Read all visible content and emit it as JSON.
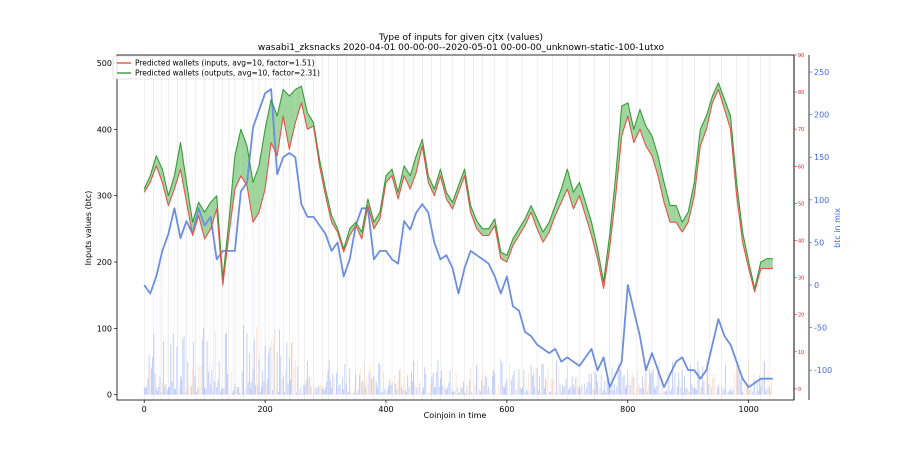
{
  "chart_data": {
    "type": "line",
    "title": "Type of inputs for given cjtx (values)",
    "subtitle": "wasabi1_zksnacks 2020-04-01 00-00-00--2020-05-01 00-00-00_unknown-static-100-1utxo",
    "xlabel": "Coinjoin in time",
    "ylabel": "Inputs values (btc)",
    "ylabel_right": "btc in mix",
    "xlim": [
      -45,
      1075
    ],
    "ylim": [
      -8,
      512
    ],
    "ylim_right_red": [
      -3,
      90
    ],
    "ylim_right_blue": [
      -135,
      270
    ],
    "x_ticks": [
      0,
      200,
      400,
      600,
      800,
      1000
    ],
    "y_ticks": [
      0,
      100,
      200,
      300,
      400,
      500
    ],
    "y_ticks_right_red": [
      0,
      10,
      20,
      30,
      40,
      50,
      60,
      70,
      80,
      90
    ],
    "y_ticks_right_blue": [
      -100,
      -50,
      0,
      50,
      100,
      150,
      200,
      250
    ],
    "legend_position": "top-left",
    "legend_entries": [
      "Predicted wallets (inputs, avg=10, factor=1.51)",
      "Predicted wallets (outputs, avg=10, factor=2.31)"
    ],
    "colors": {
      "inputs": "#e0544a",
      "outputs": "#3a9a3a",
      "fill_green": "#7ec87e",
      "fill_red": "#f08070",
      "mix": "#6d8ee0",
      "right_red_axis": "#d62728",
      "right_blue_axis": "#4169e1",
      "vlines": "#c8c8c8"
    },
    "grid": false,
    "vertical_lines_x": [
      0,
      15,
      28,
      40,
      55,
      70,
      85,
      100,
      115,
      130,
      140,
      150,
      165,
      180,
      190,
      200,
      215,
      230,
      240,
      255,
      265,
      280,
      295,
      305,
      320,
      335,
      350,
      365,
      380,
      395,
      410,
      430,
      445,
      460,
      475,
      490,
      510,
      530,
      545,
      560,
      580,
      600,
      625,
      650,
      675,
      700,
      720,
      745,
      770,
      790,
      815,
      840,
      865,
      890,
      910,
      935,
      955,
      980,
      1000,
      1020,
      1035
    ],
    "series": [
      {
        "name": "Predicted wallets (inputs, avg=10, factor=1.51)",
        "x": [
          0,
          10,
          20,
          30,
          40,
          50,
          60,
          70,
          80,
          90,
          100,
          110,
          120,
          130,
          140,
          150,
          160,
          170,
          180,
          190,
          200,
          210,
          220,
          230,
          240,
          250,
          260,
          270,
          280,
          290,
          300,
          310,
          320,
          330,
          340,
          350,
          360,
          370,
          380,
          390,
          400,
          410,
          420,
          430,
          440,
          450,
          460,
          470,
          480,
          490,
          500,
          510,
          520,
          530,
          540,
          550,
          560,
          570,
          580,
          590,
          600,
          610,
          620,
          630,
          640,
          650,
          660,
          670,
          680,
          690,
          700,
          710,
          720,
          730,
          740,
          750,
          760,
          770,
          780,
          790,
          800,
          810,
          820,
          830,
          840,
          850,
          860,
          870,
          880,
          890,
          900,
          910,
          920,
          930,
          940,
          950,
          960,
          970,
          980,
          990,
          1000,
          1010,
          1020,
          1030,
          1040
        ],
        "values": [
          305,
          320,
          345,
          320,
          285,
          310,
          340,
          290,
          240,
          270,
          235,
          250,
          280,
          165,
          240,
          310,
          330,
          315,
          260,
          275,
          310,
          380,
          360,
          420,
          370,
          410,
          440,
          400,
          405,
          345,
          300,
          260,
          245,
          215,
          240,
          255,
          235,
          285,
          250,
          265,
          320,
          330,
          295,
          330,
          310,
          335,
          375,
          320,
          300,
          330,
          295,
          280,
          305,
          330,
          275,
          250,
          240,
          240,
          255,
          205,
          200,
          225,
          240,
          255,
          275,
          250,
          230,
          245,
          270,
          290,
          310,
          280,
          300,
          270,
          240,
          205,
          160,
          220,
          300,
          390,
          420,
          380,
          400,
          375,
          360,
          330,
          290,
          260,
          260,
          245,
          260,
          300,
          375,
          400,
          440,
          460,
          430,
          400,
          300,
          230,
          190,
          155,
          190,
          190,
          190
        ]
      },
      {
        "name": "Predicted wallets (outputs, avg=10, factor=2.31)",
        "x": [
          0,
          10,
          20,
          30,
          40,
          50,
          60,
          70,
          80,
          90,
          100,
          110,
          120,
          130,
          140,
          150,
          160,
          170,
          180,
          190,
          200,
          210,
          220,
          230,
          240,
          250,
          260,
          270,
          280,
          290,
          300,
          310,
          320,
          330,
          340,
          350,
          360,
          370,
          380,
          390,
          400,
          410,
          420,
          430,
          440,
          450,
          460,
          470,
          480,
          490,
          500,
          510,
          520,
          530,
          540,
          550,
          560,
          570,
          580,
          590,
          600,
          610,
          620,
          630,
          640,
          650,
          660,
          670,
          680,
          690,
          700,
          710,
          720,
          730,
          740,
          750,
          760,
          770,
          780,
          790,
          800,
          810,
          820,
          830,
          840,
          850,
          860,
          870,
          880,
          890,
          900,
          910,
          920,
          930,
          940,
          950,
          960,
          970,
          980,
          990,
          1000,
          1010,
          1020,
          1030,
          1040
        ],
        "values": [
          310,
          330,
          360,
          340,
          300,
          330,
          380,
          320,
          260,
          290,
          275,
          290,
          300,
          175,
          260,
          360,
          400,
          375,
          320,
          345,
          400,
          445,
          420,
          460,
          450,
          460,
          465,
          425,
          410,
          355,
          310,
          270,
          250,
          220,
          250,
          260,
          245,
          295,
          260,
          275,
          330,
          340,
          305,
          345,
          330,
          360,
          385,
          330,
          310,
          340,
          305,
          290,
          315,
          340,
          285,
          262,
          250,
          250,
          265,
          215,
          210,
          235,
          250,
          265,
          285,
          265,
          245,
          260,
          285,
          310,
          340,
          305,
          320,
          290,
          260,
          220,
          170,
          240,
          330,
          435,
          440,
          400,
          430,
          405,
          390,
          360,
          320,
          285,
          285,
          260,
          275,
          320,
          400,
          420,
          450,
          470,
          445,
          420,
          320,
          245,
          200,
          160,
          200,
          205,
          205
        ]
      },
      {
        "name": "btc in mix",
        "axis": "right",
        "x": [
          0,
          10,
          20,
          30,
          40,
          50,
          60,
          70,
          80,
          90,
          100,
          110,
          120,
          130,
          140,
          150,
          160,
          170,
          180,
          190,
          200,
          210,
          220,
          230,
          240,
          250,
          260,
          270,
          280,
          290,
          300,
          310,
          320,
          330,
          340,
          350,
          360,
          370,
          380,
          390,
          400,
          410,
          420,
          430,
          440,
          450,
          460,
          470,
          480,
          490,
          500,
          510,
          520,
          530,
          540,
          550,
          560,
          570,
          580,
          590,
          600,
          610,
          620,
          630,
          640,
          650,
          660,
          670,
          680,
          690,
          700,
          710,
          720,
          730,
          740,
          750,
          760,
          770,
          780,
          790,
          800,
          810,
          820,
          830,
          840,
          850,
          860,
          870,
          880,
          890,
          900,
          910,
          920,
          930,
          940,
          950,
          960,
          970,
          980,
          990,
          1000,
          1010,
          1020,
          1030,
          1040
        ],
        "values": [
          0,
          -10,
          10,
          40,
          60,
          90,
          55,
          75,
          60,
          90,
          70,
          80,
          30,
          40,
          40,
          40,
          110,
          120,
          185,
          205,
          225,
          230,
          130,
          150,
          155,
          150,
          95,
          80,
          80,
          70,
          60,
          40,
          50,
          10,
          30,
          70,
          90,
          90,
          30,
          40,
          40,
          30,
          25,
          75,
          65,
          85,
          95,
          85,
          50,
          30,
          35,
          20,
          -10,
          20,
          40,
          35,
          30,
          25,
          10,
          -10,
          10,
          -25,
          -30,
          -55,
          -60,
          -70,
          -75,
          -80,
          -75,
          -90,
          -85,
          -90,
          -95,
          -85,
          -75,
          -100,
          -85,
          -120,
          -105,
          -90,
          0,
          -30,
          -60,
          -100,
          -80,
          -100,
          -120,
          -105,
          -90,
          -85,
          -100,
          -100,
          -110,
          -100,
          -70,
          -40,
          -60,
          -70,
          -90,
          -110,
          -120,
          -115,
          -110,
          -110,
          -110
        ]
      }
    ]
  }
}
